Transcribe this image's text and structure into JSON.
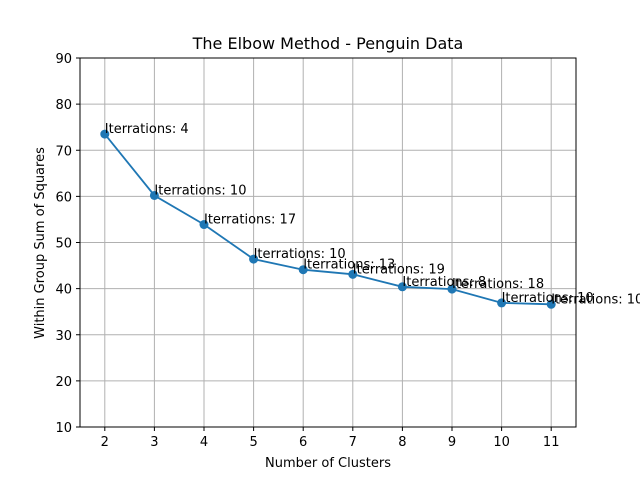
{
  "chart_data": {
    "type": "line",
    "title": "The Elbow Method - Penguin Data",
    "xlabel": "Number of Clusters",
    "ylabel": "Within Group Sum of Squares",
    "xlim": [
      1.5,
      11.5
    ],
    "ylim": [
      10,
      90
    ],
    "grid": true,
    "line_color": "#1f77b4",
    "x": [
      2,
      3,
      4,
      5,
      6,
      7,
      8,
      9,
      10,
      11
    ],
    "y": [
      73.5,
      60.2,
      53.9,
      46.4,
      44.1,
      43.1,
      40.4,
      39.9,
      36.9,
      36.6
    ],
    "annotations": [
      "Iterrations: 4",
      "Iterrations: 10",
      "Iterrations: 17",
      "Iterrations: 10",
      "Iterrations: 13",
      "Iterrations: 19",
      "Iterrations: 8",
      "Iterrations: 18",
      "Iterrations: 10",
      "Iterrations: 10"
    ],
    "x_ticks": [
      2,
      3,
      4,
      5,
      6,
      7,
      8,
      9,
      10,
      11
    ],
    "y_ticks": [
      10,
      20,
      30,
      40,
      50,
      60,
      70,
      80,
      90
    ]
  }
}
